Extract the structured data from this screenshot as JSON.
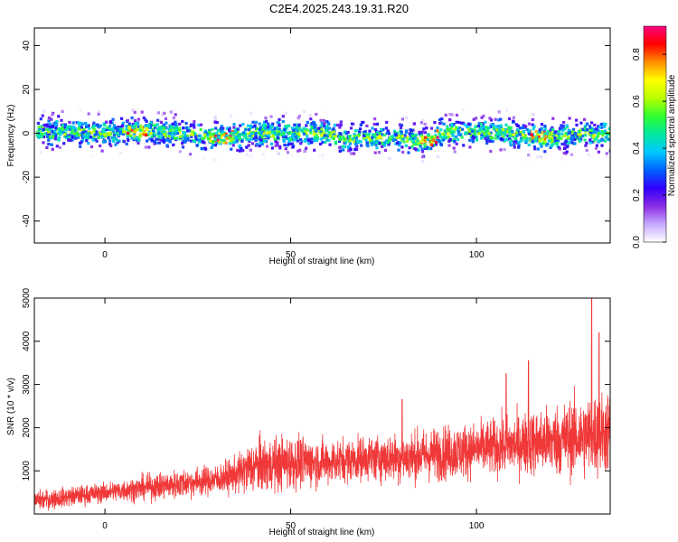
{
  "title": "C2E4.2025.243.19.31.R20",
  "chart_data": [
    {
      "type": "heatmap",
      "xlabel": "Height of straight line (km)",
      "ylabel": "Frequency (Hz)",
      "xlim": [
        -19,
        136
      ],
      "ylim": [
        -50,
        48
      ],
      "xticks": [
        0,
        50,
        100
      ],
      "yticks": [
        -40,
        -20,
        0,
        20,
        40
      ],
      "grid": false,
      "ridge_center_hz": [
        [
          -19,
          1
        ],
        [
          0,
          0
        ],
        [
          10,
          1
        ],
        [
          20,
          0
        ],
        [
          31,
          -2
        ],
        [
          40,
          0
        ],
        [
          50,
          0
        ],
        [
          60,
          0
        ],
        [
          65,
          -3
        ],
        [
          70,
          -2
        ],
        [
          80,
          -2
        ],
        [
          87,
          -4
        ],
        [
          90,
          0
        ],
        [
          100,
          1
        ],
        [
          110,
          0
        ],
        [
          118,
          -2
        ],
        [
          125,
          -1
        ],
        [
          136,
          0
        ]
      ],
      "ridge_width_hz": 7,
      "peak_regions_km": [
        8,
        31,
        87,
        117
      ],
      "colorbar": {
        "label": "Normalized spectral amplitude",
        "range": [
          0,
          0.92
        ],
        "ticks": [
          0.0,
          0.2,
          0.4,
          0.6,
          0.8
        ],
        "colors": [
          "#ffffff",
          "#c7a8ff",
          "#8a2be2",
          "#3000ff",
          "#0060ff",
          "#00c8ff",
          "#00e8a0",
          "#30ff30",
          "#b8ff00",
          "#ffff00",
          "#ff9000",
          "#ff0000",
          "#ff0080"
        ]
      }
    },
    {
      "type": "line",
      "xlabel": "Height of straight line (km)",
      "ylabel": "SNR (10 * v/v)",
      "xlim": [
        -19,
        136
      ],
      "ylim": [
        0,
        5000
      ],
      "xticks": [
        0,
        50,
        100
      ],
      "yticks": [
        1000,
        2000,
        3000,
        4000,
        5000
      ],
      "grid": false,
      "color": "#f03838",
      "trend": {
        "x": [
          -19,
          0,
          10,
          20,
          30,
          35,
          40,
          50,
          60,
          70,
          80,
          90,
          100,
          110,
          120,
          130,
          136
        ],
        "median": [
          300,
          500,
          600,
          700,
          800,
          900,
          1100,
          1200,
          1200,
          1300,
          1300,
          1400,
          1500,
          1600,
          1700,
          1800,
          1900
        ],
        "upper": [
          700,
          900,
          1100,
          1300,
          1400,
          1600,
          2200,
          2300,
          2100,
          2200,
          2300,
          2500,
          2600,
          2800,
          3100,
          3500,
          3600
        ]
      },
      "spikes": [
        [
          80,
          2650
        ],
        [
          108,
          3250
        ],
        [
          114,
          3550
        ],
        [
          131,
          5000
        ],
        [
          133,
          4200
        ]
      ]
    }
  ]
}
